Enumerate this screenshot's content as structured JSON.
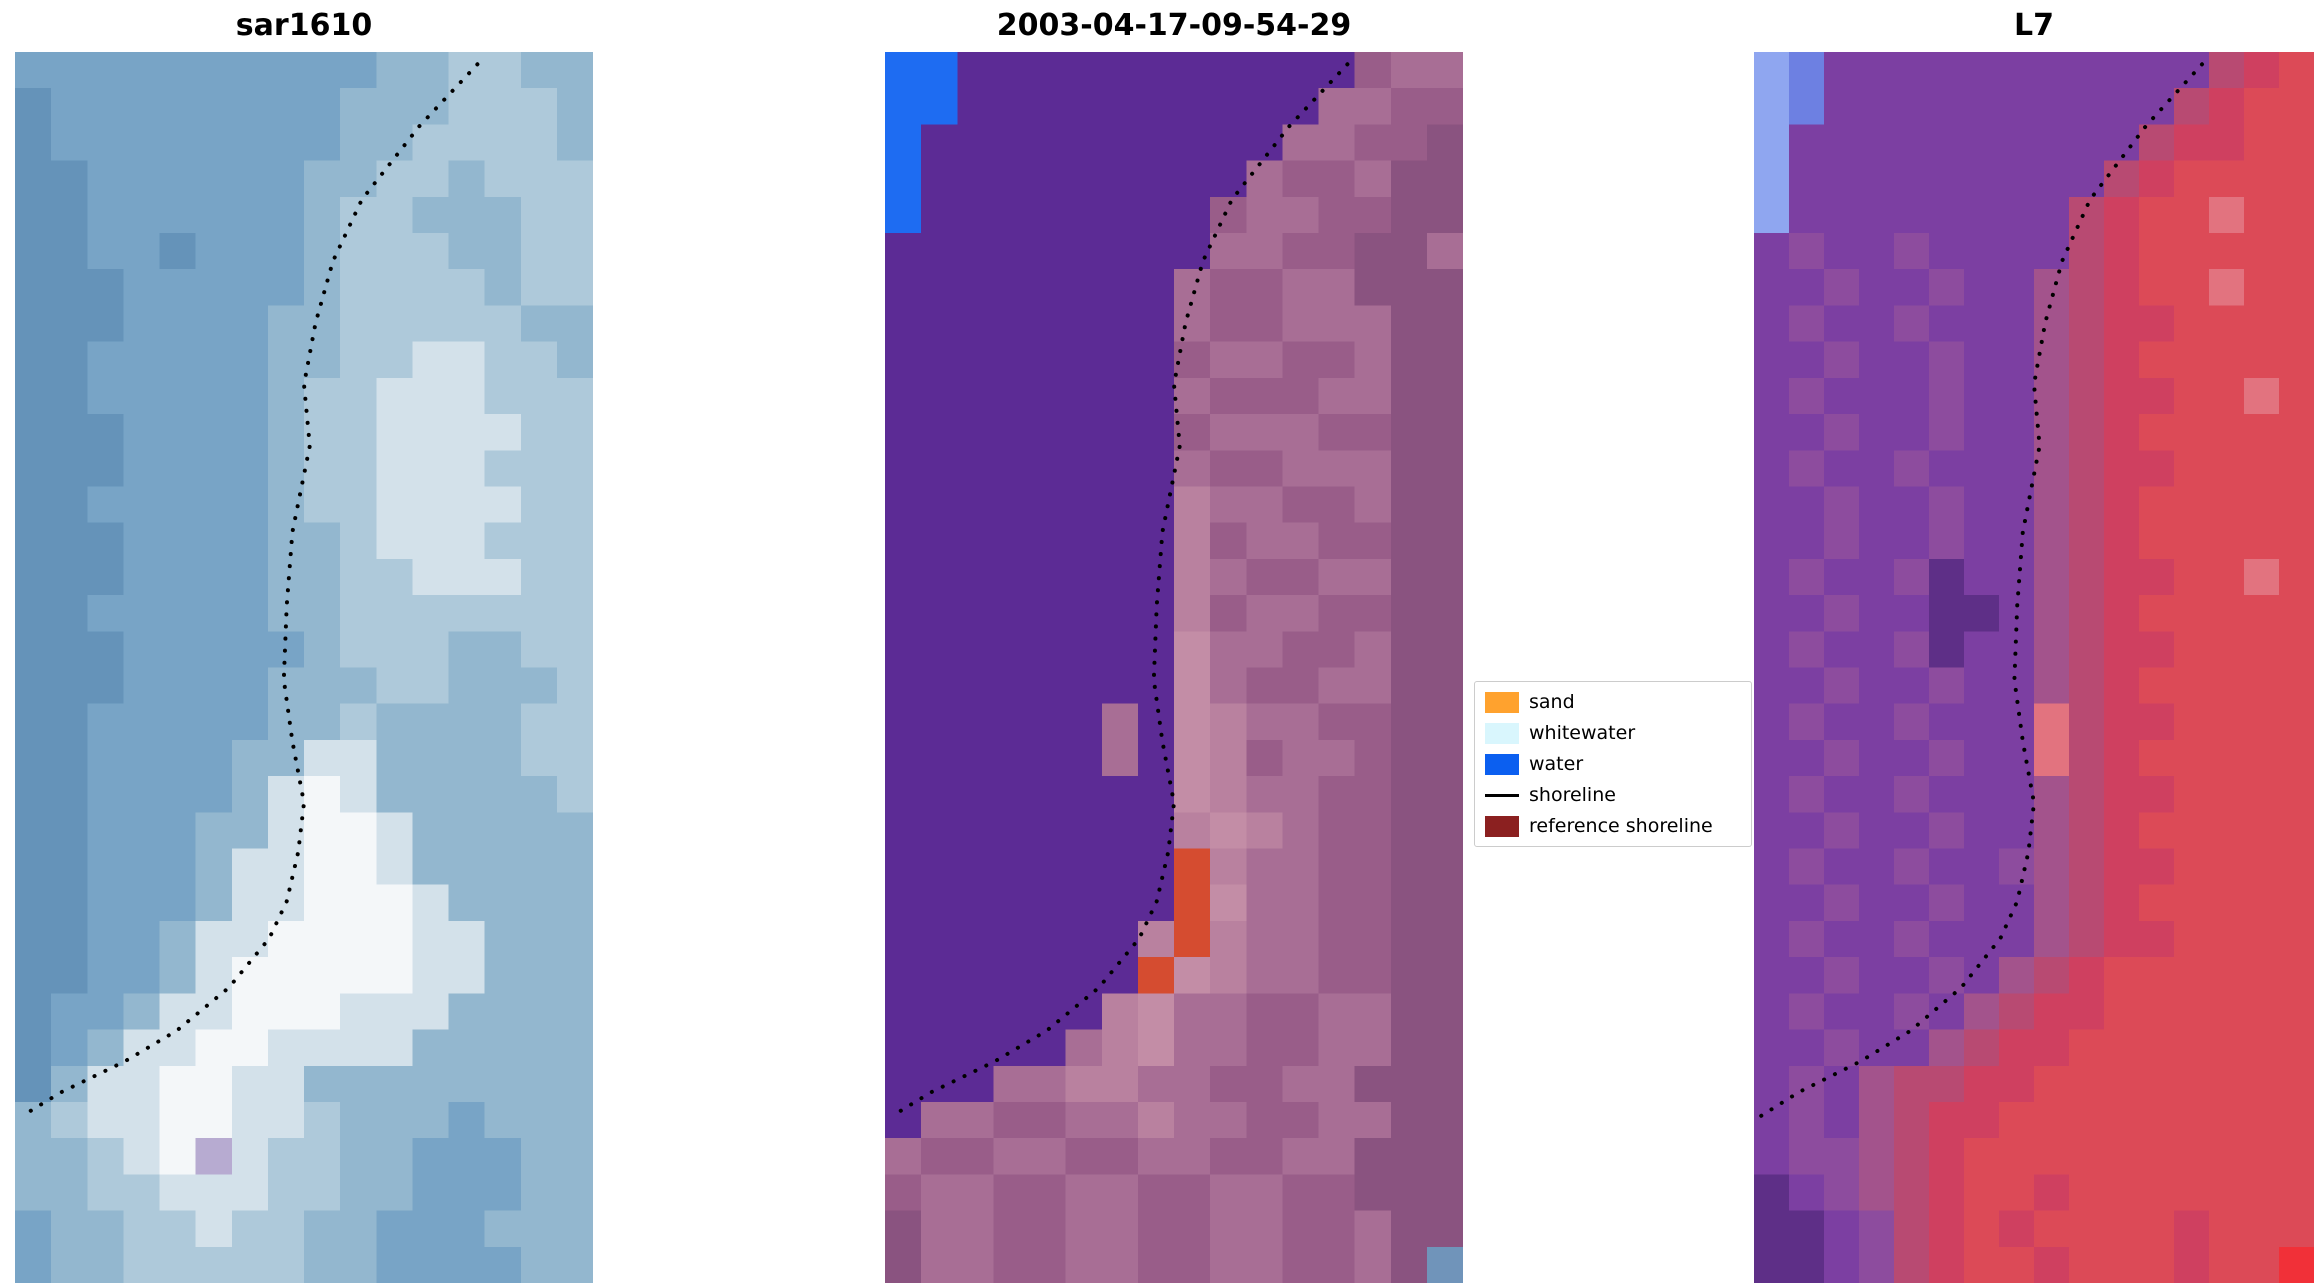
{
  "panels": [
    {
      "title": "sar1610",
      "palette": {
        "a": "#6593b9",
        "b": "#78a4c6",
        "c": "#93b7cf",
        "d": "#aec9da",
        "e": "#d3e1ea",
        "f": "#f4f7f9",
        "h": "#b7abd1"
      },
      "pixels": [
        "bbbbbbbbbbccddcc",
        "abbbbbbbbcccdddc",
        "abbbbbbbbccddddc",
        "aabbbbbbccddcddd",
        "aabbbbbbcddcccdd",
        "aabbabbbcdddccdd",
        "aaabbbbbcddddcdd",
        "aaabbbbccdddddcc",
        "aabbbbbccddeeddc",
        "aabbbbbcddeeeddd",
        "aaabbbbcddeeeedd",
        "aaabbbbcddeeeddd",
        "aabbbbbcddeeeedd",
        "aaabbbbccdeeeddd",
        "aaabbbbccddeeedd",
        "aabbbbbccddddddd",
        "aaabbbbbcdddccdd",
        "aaabbbbcccddcccd",
        "aabbbbbccdccccdd",
        "aabbbbcceeccccdd",
        "aabbbbcefecccccd",
        "aabbbcceffeccccc",
        "aabbbceeffeccccc",
        "aabbbceefffecccc",
        "aabbceeffffeeccc",
        "aabbcefffffeeccc",
        "abbceefffeeecccc",
        "abceeffeeeeccccc",
        "aceeffeecccccccc",
        "cdeeffeedcccbccc",
        "ccdefheddccbbbcc",
        "ccddeeeddccbbbcc",
        "bccddeddccbbbccc",
        "bccdddddccbbbbcc"
      ]
    },
    {
      "title": "2003-04-17-09-54-29",
      "palette": {
        "p": "#5c2b95",
        "w": "#1e6cf2",
        "m": "#995d89",
        "n": "#a86e95",
        "o": "#8a5380",
        "q": "#b9819f",
        "k": "#c38da6",
        "r": "#d54c30",
        "s": "#7094ba"
      },
      "pixels": [
        "wwpppppppppppmnn",
        "wwppppppppppnnmm",
        "wppppppppppnnmmo",
        "wpppppppppnmmnoo",
        "wppppppppmnnmmoo",
        "pppppppppnnmmoon",
        "ppppppppnmmnnooo",
        "ppppppppnmmnnnoo",
        "ppppppppmnnmmnoo",
        "ppppppppnmmmnnoo",
        "ppppppppmnnnmmoo",
        "ppppppppnmmnnnoo",
        "ppppppppqnnmmnoo",
        "ppppppppqmnnmmoo",
        "ppppppppqnmmnnoo",
        "ppppppppqmnnmmoo",
        "ppppppppknnmmnoo",
        "ppppppppknmmnnoo",
        "ppppppnpkqnnmmoo",
        "ppppppnpkqmnnmoo",
        "ppppppppkqnnmmoo",
        "ppppppppqkqnmmoo",
        "pppppppprqnnmmoo",
        "pppppppprknnmmoo",
        "pppppppqrqnnmmoo",
        "ppppppprkqnnmmoo",
        "ppppppqknnmmnnoo",
        "pppppnqknnmmnnoo",
        "pppnnqqnnmmnnooo",
        "pnnmmnnqnnmmnnoo",
        "nmmnnmmnnmmnnooo",
        "mnnmmnnmmnnmmooo",
        "onnmmnnmmnnmmnoo",
        "onnmmnnmmnnmmnos"
      ]
    },
    {
      "title": "L7",
      "palette": {
        "b": "#8fa6f0",
        "c": "#6d80e2",
        "u": "#7c3fa2",
        "v": "#8d4c9e",
        "m": "#a3538c",
        "x": "#b84a72",
        "y": "#cf4060",
        "z": "#dc4a57",
        "p": "#e2737f",
        "d": "#5e2f87",
        "r": "#f13038"
      },
      "pixels": [
        "bcuuuuuuuuuuuxyz",
        "bcuuuuuuuuuuxyzz",
        "buuuuuuuuuuxyyzz",
        "buuuuuuuuuxyzzzz",
        "buuuuuuuuxyzzpzz",
        "uvuuvuuuuxyzzzzz",
        "uuvuuvuumxyzzpzz",
        "uvuuvuuumxyyzzzz",
        "uuvuuvuumxyzzzzz",
        "uvuuuvuumxyyzzpz",
        "uuvuuvuumxyzzzzz",
        "uvuuvuuumxyyzzzz",
        "uuvuuvuumxyzzzzz",
        "uuvuuvuumxyzzzzz",
        "uvuuvduumxyyzzpz",
        "uuvuuddumxyzzzzz",
        "uvuuvduumxyyzzzz",
        "uuvuuvuumxyzzzzz",
        "uvuuvuuupxyyzzzz",
        "uuvuuvuupxyzzzzz",
        "uvuuvuuumxyyzzzz",
        "uuvuuvuumxyzzzzz",
        "uvuuvuuvmxyyzzzz",
        "uuvuuvuumxyzzzzz",
        "uvuuvuuumxyyzzzz",
        "uuvuuvumxyzzzzzz",
        "uvuuvumxyyzzzzzz",
        "uuvuumxyyzzzzzzz",
        "uvumxxyyzzzzzzzz",
        "uvumxyyzzzzzzzzz",
        "uvvmxyzzzzzzzzzz",
        "duvmxyzzyzzzzzzz",
        "dduvxyzyzzzzyzzz",
        "dduvxyzzyzzzyzzr"
      ]
    }
  ],
  "shoreline": {
    "color": "#000000",
    "points": [
      [
        0.8,
        0.01
      ],
      [
        0.7,
        0.06
      ],
      [
        0.6,
        0.12
      ],
      [
        0.55,
        0.17
      ],
      [
        0.52,
        0.22
      ],
      [
        0.5,
        0.27
      ],
      [
        0.51,
        0.32
      ],
      [
        0.48,
        0.39
      ],
      [
        0.47,
        0.45
      ],
      [
        0.465,
        0.51
      ],
      [
        0.48,
        0.56
      ],
      [
        0.5,
        0.61
      ],
      [
        0.49,
        0.65
      ],
      [
        0.47,
        0.69
      ],
      [
        0.44,
        0.72
      ],
      [
        0.37,
        0.76
      ],
      [
        0.28,
        0.795
      ],
      [
        0.19,
        0.82
      ],
      [
        0.08,
        0.845
      ],
      [
        0.01,
        0.865
      ]
    ]
  },
  "legend": {
    "items": [
      {
        "label": "sand",
        "type": "patch",
        "color": "#ffa22e"
      },
      {
        "label": "whitewater",
        "type": "patch",
        "color": "#d9f6fd"
      },
      {
        "label": "water",
        "type": "patch",
        "color": "#0b5ff0"
      },
      {
        "label": "shoreline",
        "type": "line",
        "color": "#000000"
      },
      {
        "label": "reference shoreline",
        "type": "patch",
        "color": "#8b2020"
      }
    ]
  }
}
